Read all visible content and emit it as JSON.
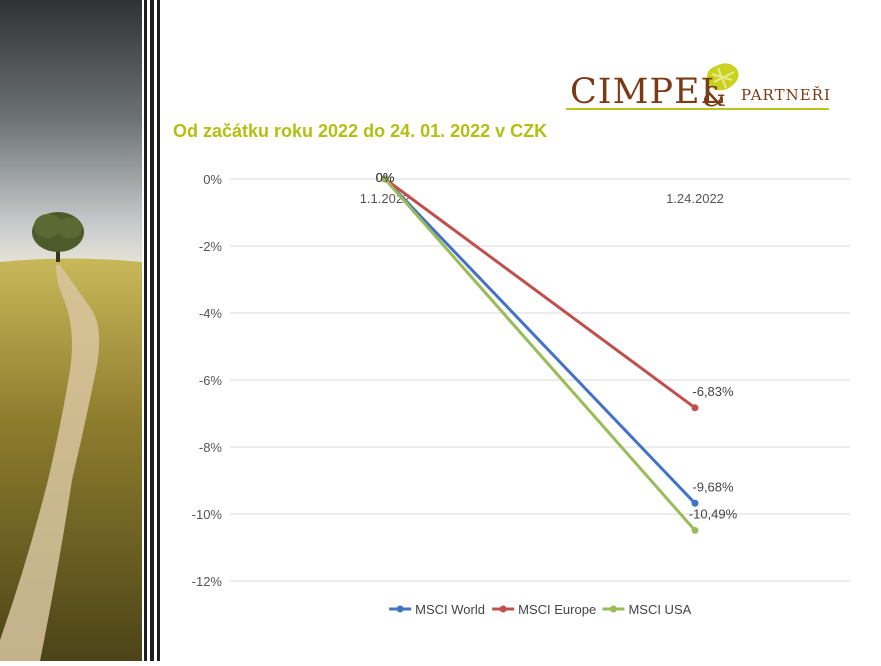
{
  "logo": {
    "name_main": "CIMPEL",
    "name_amp": "&",
    "name_sub": "PARTNEŘI",
    "color": "#7a3b15",
    "accent": "#bcc51f"
  },
  "chart_data": {
    "type": "line",
    "title": "Od začátku roku 2022 do 24. 01. 2022 v CZK",
    "categories": [
      "1.1.2022",
      "1.24.2022"
    ],
    "ylim": [
      -12,
      0
    ],
    "yticks": [
      0,
      -2,
      -4,
      -6,
      -8,
      -10,
      -12
    ],
    "ytick_labels": [
      "0%",
      "-2%",
      "-4%",
      "-6%",
      "-8%",
      "-10%",
      "-12%"
    ],
    "grid": true,
    "legend_position": "bottom",
    "series": [
      {
        "name": "MSCI World",
        "values": [
          0,
          -9.68
        ],
        "labels": [
          "0%",
          "-9,68%"
        ],
        "color": "#4472c4"
      },
      {
        "name": "MSCI Europe",
        "values": [
          0,
          -6.83
        ],
        "labels": [
          "0%",
          "-6,83%"
        ],
        "color": "#c0504d"
      },
      {
        "name": "MSCI USA",
        "values": [
          0,
          -10.49
        ],
        "labels": [
          "0%",
          "-10,49%"
        ],
        "color": "#9bbb59"
      }
    ]
  }
}
